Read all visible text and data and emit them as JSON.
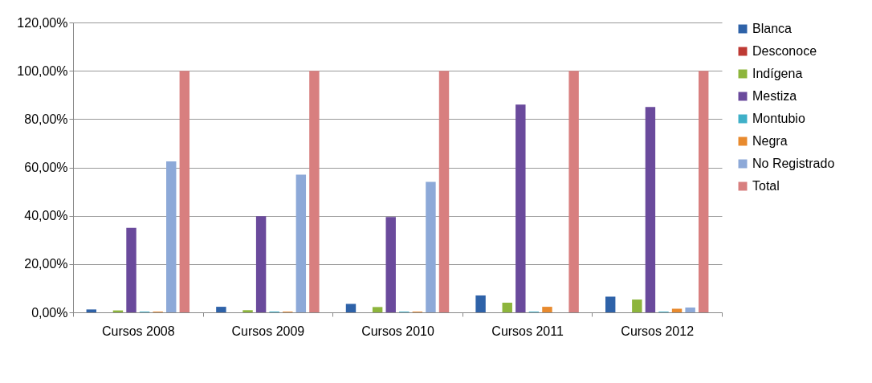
{
  "chart_data": {
    "type": "bar",
    "categories": [
      "Cursos 2008",
      "Cursos 2009",
      "Cursos 2010",
      "Cursos 2011",
      "Cursos 2012"
    ],
    "series": [
      {
        "name": "Blanca",
        "color": "#2e62a8",
        "values": [
          1.2,
          2.3,
          3.5,
          7,
          6.5
        ]
      },
      {
        "name": "Desconoce",
        "color": "#be3a34",
        "values": [
          0,
          0,
          0,
          0,
          0
        ]
      },
      {
        "name": "Indígena",
        "color": "#8db53c",
        "values": [
          0.8,
          0.9,
          2.2,
          4,
          5.3
        ]
      },
      {
        "name": "Mestiza",
        "color": "#6a4a9c",
        "values": [
          35,
          39.8,
          39.5,
          86,
          85
        ]
      },
      {
        "name": "Montubio",
        "color": "#3fb0c8",
        "values": [
          0.3,
          0.3,
          0.3,
          0.3,
          0.3
        ]
      },
      {
        "name": "Negra",
        "color": "#e88a2e",
        "values": [
          0.3,
          0.3,
          0.3,
          2.3,
          1.5
        ]
      },
      {
        "name": "No Registrado",
        "color": "#8da9d8",
        "values": [
          62.5,
          57,
          54,
          0,
          2
        ]
      },
      {
        "name": "Total",
        "color": "#d87f7f",
        "values": [
          100,
          100,
          100,
          100,
          100
        ]
      }
    ],
    "ylim": [
      0,
      120
    ],
    "yticks": [
      {
        "value": 0,
        "label": "0,00%"
      },
      {
        "value": 20,
        "label": "20,00%"
      },
      {
        "value": 40,
        "label": "40,00%"
      },
      {
        "value": 60,
        "label": "60,00%"
      },
      {
        "value": 80,
        "label": "80,00%"
      },
      {
        "value": 100,
        "label": "100,00%"
      },
      {
        "value": 120,
        "label": "120,00%"
      }
    ],
    "grid": "y",
    "legend": "right"
  }
}
